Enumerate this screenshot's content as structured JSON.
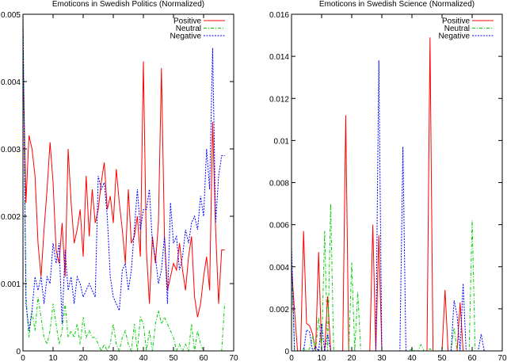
{
  "chart_data": [
    {
      "type": "line",
      "title": "Emoticons in Swedish Politics (Normalized)",
      "xlabel": "",
      "ylabel": "",
      "xlim": [
        0,
        70
      ],
      "ylim": [
        0,
        0.005
      ],
      "xticks": [
        "0",
        "10",
        "20",
        "30",
        "40",
        "50",
        "60",
        "70"
      ],
      "yticks": [
        "0",
        "0.001",
        "0.002",
        "0.003",
        "0.004",
        "0.005"
      ],
      "legend_position": "top-right",
      "grid": false,
      "x": [
        0,
        1,
        2,
        3,
        4,
        5,
        6,
        7,
        8,
        9,
        10,
        11,
        12,
        13,
        14,
        15,
        16,
        17,
        18,
        19,
        20,
        21,
        22,
        23,
        24,
        25,
        26,
        27,
        28,
        29,
        30,
        31,
        32,
        33,
        34,
        35,
        36,
        37,
        38,
        39,
        40,
        41,
        42,
        43,
        44,
        45,
        46,
        47,
        48,
        49,
        50,
        51,
        52,
        53,
        54,
        55,
        56,
        57,
        58,
        59,
        60,
        61,
        62,
        63,
        64,
        65,
        66,
        67
      ],
      "series": [
        {
          "name": "Positive",
          "color": "#ff0000",
          "style": "solid",
          "values": [
            0.0044,
            0.0022,
            0.0032,
            0.003,
            0.0026,
            0.0016,
            0.0011,
            0.0018,
            0.0024,
            0.0031,
            0.0025,
            0.0015,
            0.0013,
            0.0019,
            0.0011,
            0.003,
            0.0022,
            0.0016,
            0.0018,
            0.0021,
            0.0014,
            0.0026,
            0.0017,
            0.0024,
            0.0019,
            0.0021,
            0.0025,
            0.0028,
            0.0021,
            0.0023,
            0.0019,
            0.0027,
            0.0022,
            0.0018,
            0.0013,
            0.0024,
            0.0016,
            0.0017,
            0.002,
            0.0014,
            0.0043,
            0.0015,
            0.0007,
            0.0017,
            0.0013,
            0.0019,
            0.0042,
            0.0017,
            0.0009,
            0.0011,
            0.0013,
            0.0012,
            0.0016,
            0.0012,
            0.0009,
            0.0014,
            0.0017,
            0.0008,
            0.0005,
            0.0007,
            0.0011,
            0.0014,
            0.0009,
            0.0034,
            0.0018,
            0.0007,
            0.0015,
            0.0015
          ]
        },
        {
          "name": "Neutral",
          "color": "#00cc00",
          "style": "dash-dot",
          "values": [
            0.005,
            0.0008,
            0.0002,
            0.0006,
            0.0003,
            0.0008,
            0.0005,
            0.0002,
            0.0001,
            0.0003,
            0.0007,
            0.0004,
            0.0001,
            0.0003,
            0.0007,
            0.0002,
            0.0003,
            0.0002,
            0.0004,
            0.0001,
            0.0005,
            0.0002,
            0.0003,
            0.0002,
            0.0002,
            0.0001,
            0.0,
            0.0001,
            0.0,
            0.0001,
            0.0004,
            0.0001,
            0.0,
            0.0002,
            0.0003,
            0.0001,
            0.0,
            0.0004,
            0.0,
            0.0005,
            0.0004,
            0.0,
            0.0003,
            0.0,
            0.0004,
            0.0006,
            0.0004,
            0.0005,
            0.0004,
            0.0003,
            0.0002,
            0.0,
            0.0001,
            0.0,
            0.0001,
            0.0,
            0.0004,
            0.0,
            0.0003,
            0.0001,
            0.0,
            0.0,
            0.0,
            0.0,
            0.0,
            0.0,
            0.0,
            0.0007
          ]
        },
        {
          "name": "Negative",
          "color": "#0000ff",
          "style": "dotted",
          "values": [
            0.005,
            0.0007,
            0.0003,
            0.0006,
            0.0011,
            0.0009,
            0.0011,
            0.0007,
            0.0011,
            0.001,
            0.0016,
            0.0013,
            0.0016,
            0.0004,
            0.0015,
            0.0009,
            0.0011,
            0.0007,
            0.0011,
            0.001,
            0.0008,
            0.0009,
            0.001,
            0.0009,
            0.0008,
            0.0026,
            0.0024,
            0.0025,
            0.002,
            0.0011,
            0.0008,
            0.0007,
            0.0006,
            0.0012,
            0.0013,
            0.0009,
            0.0012,
            0.0018,
            0.0024,
            0.0018,
            0.0021,
            0.0021,
            0.0024,
            0.0016,
            0.0014,
            0.001,
            0.0012,
            0.0017,
            0.0007,
            0.0022,
            0.0016,
            0.0017,
            0.0012,
            0.0014,
            0.0018,
            0.0016,
            0.0019,
            0.002,
            0.0018,
            0.0023,
            0.002,
            0.003,
            0.0024,
            0.0045,
            0.0019,
            0.0026,
            0.0029,
            0.0029
          ]
        }
      ]
    },
    {
      "type": "line",
      "title": "Emoticons in Swedish Science (Normalized)",
      "xlabel": "",
      "ylabel": "",
      "xlim": [
        0,
        70
      ],
      "ylim": [
        0,
        0.016
      ],
      "xticks": [
        "0",
        "10",
        "20",
        "30",
        "40",
        "50",
        "60",
        "70"
      ],
      "yticks": [
        "0",
        "0.002",
        "0.004",
        "0.006",
        "0.008",
        "0.01",
        "0.012",
        "0.014",
        "0.016"
      ],
      "legend_position": "top-right",
      "grid": false,
      "x": [
        0,
        1,
        2,
        3,
        4,
        5,
        6,
        7,
        8,
        9,
        10,
        11,
        12,
        13,
        14,
        15,
        16,
        17,
        18,
        19,
        20,
        21,
        22,
        23,
        24,
        25,
        26,
        27,
        28,
        29,
        30,
        31,
        32,
        33,
        34,
        35,
        36,
        37,
        38,
        39,
        40,
        41,
        42,
        43,
        44,
        45,
        46,
        47,
        48,
        49,
        50,
        51,
        52,
        53,
        54,
        55,
        56,
        57,
        58,
        59,
        60,
        61,
        62,
        63,
        64,
        65,
        66,
        67
      ],
      "series": [
        {
          "name": "Positive",
          "color": "#ff0000",
          "style": "solid",
          "values": [
            0.004,
            0.0019,
            0.0,
            0.0,
            0.0057,
            0.0013,
            0.0012,
            0.0008,
            0.0,
            0.0047,
            0.0,
            0.0,
            0.0026,
            0.0,
            0.0,
            0.0,
            0.0,
            0.0,
            0.0112,
            0.0,
            0.0,
            0.0,
            0.0,
            0.0,
            0.0,
            0.0,
            0.0,
            0.006,
            0.0,
            0.0055,
            0.0,
            0.0,
            0.0,
            0.0,
            0.0,
            0.0,
            0.0,
            0.0,
            0.0,
            0.0,
            0.0,
            0.0,
            0.0,
            0.0,
            0.0,
            0.0,
            0.0149,
            0.0,
            0.0,
            0.0,
            0.0,
            0.0029,
            0.0,
            0.0,
            0.0,
            0.0,
            0.0023,
            0.0,
            0.0,
            0.0,
            0.0,
            0.0,
            0.0,
            0.0,
            0.0,
            0.0,
            0.0,
            0.0
          ]
        },
        {
          "name": "Neutral",
          "color": "#00cc00",
          "style": "dash-dot",
          "values": [
            0.004,
            0.0,
            0.0,
            0.0,
            0.0001,
            0.0,
            0.0001,
            0.0007,
            0.0,
            0.0016,
            0.0,
            0.0057,
            0.0,
            0.007,
            0.0,
            0.0,
            0.0,
            0.0,
            0.0,
            0.0,
            0.0042,
            0.0,
            0.0028,
            0.0,
            0.0,
            0.0,
            0.0,
            0.0,
            0.0,
            0.0,
            0.0,
            0.0,
            0.0,
            0.0,
            0.0,
            0.0,
            0.0,
            0.0,
            0.0,
            0.0,
            0.0001,
            0.0,
            0.0,
            0.0003,
            0.0,
            0.0,
            0.0001,
            0.0,
            0.0,
            0.0,
            0.0,
            0.0,
            0.0,
            0.0,
            0.0011,
            0.0,
            0.0,
            0.0,
            0.0,
            0.0,
            0.0062,
            0.0,
            0.0,
            0.0,
            0.0,
            0.0,
            0.0,
            0.0
          ]
        },
        {
          "name": "Negative",
          "color": "#0000ff",
          "style": "dotted",
          "values": [
            0.005,
            0.0,
            0.0,
            0.0,
            0.0,
            0.001,
            0.0009,
            0.0,
            0.0002,
            0.0,
            0.0013,
            0.0,
            0.0008,
            0.0,
            0.0,
            0.0,
            0.0,
            0.0,
            0.0,
            0.0,
            0.0,
            0.0,
            0.0,
            0.0,
            0.0,
            0.0,
            0.0,
            0.0,
            0.0,
            0.0138,
            0.0,
            0.0,
            0.0,
            0.0,
            0.0,
            0.0,
            0.0,
            0.0097,
            0.0,
            0.0,
            0.0,
            0.0,
            0.0,
            0.0,
            0.0,
            0.0,
            0.0,
            0.0,
            0.0,
            0.0,
            0.0,
            0.0,
            0.0,
            0.0,
            0.0024,
            0.0017,
            0.0,
            0.0032,
            0.0,
            0.0,
            0.0,
            0.0,
            0.0,
            0.0008,
            0.0,
            0.0,
            0.0,
            0.0
          ]
        }
      ]
    }
  ]
}
